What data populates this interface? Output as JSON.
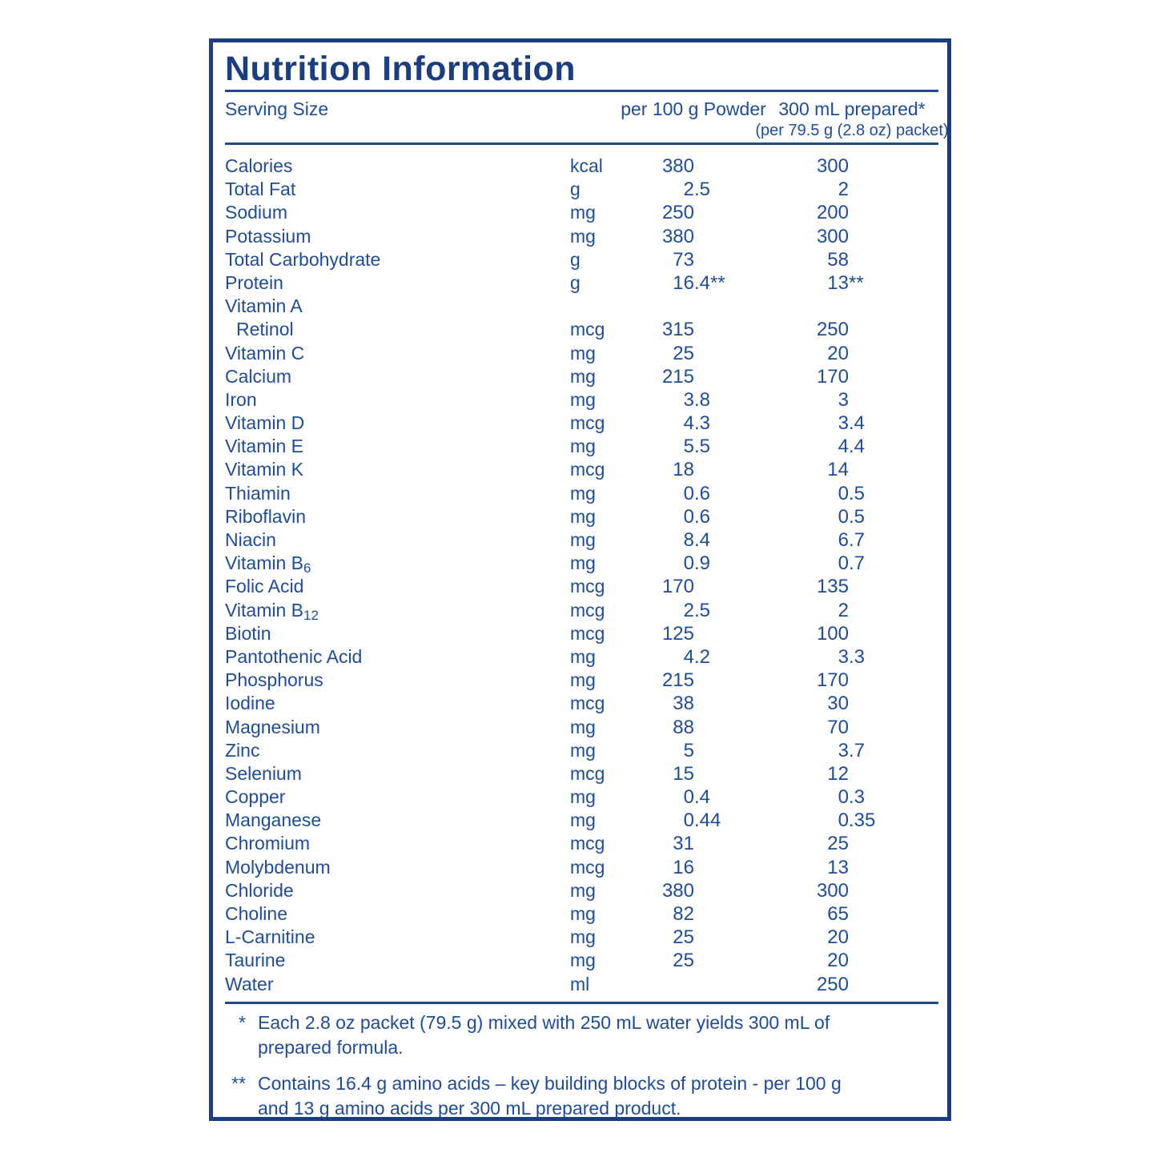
{
  "page": {
    "title": "Nutrition Information",
    "colors": {
      "navy": "#1c3e7d",
      "text": "#1f4c92",
      "rule": "#24498a"
    }
  },
  "header": {
    "serving_size_label": "Serving Size",
    "col_powder": "per 100 g Powder",
    "col_prepared_line1": "300 mL prepared*",
    "col_prepared_line2": "(per 79.5 g (2.8 oz) packet)"
  },
  "rows": [
    {
      "label": "Calories",
      "unit": "kcal",
      "per100": "380",
      "prepared": "300"
    },
    {
      "label": "Total Fat",
      "unit": "g",
      "per100": "2.5",
      "prepared": "2"
    },
    {
      "label": "Sodium",
      "unit": "mg",
      "per100": "250",
      "prepared": "200"
    },
    {
      "label": "Potassium",
      "unit": "mg",
      "per100": "380",
      "prepared": "300"
    },
    {
      "label": "Total Carbohydrate",
      "unit": "g",
      "per100": "73",
      "prepared": "58"
    },
    {
      "label": "Protein",
      "unit": "g",
      "per100": "16.4**",
      "prepared": "13**"
    },
    {
      "label": "Vitamin A",
      "unit": "",
      "per100": "",
      "prepared": ""
    },
    {
      "label": "Retinol",
      "indent": true,
      "unit": "mcg",
      "per100": "315",
      "prepared": "250"
    },
    {
      "label": "Vitamin C",
      "unit": "mg",
      "per100": "25",
      "prepared": "20"
    },
    {
      "label": "Calcium",
      "unit": "mg",
      "per100": "215",
      "prepared": "170"
    },
    {
      "label": "Iron",
      "unit": "mg",
      "per100": "3.8",
      "prepared": "3"
    },
    {
      "label": "Vitamin D",
      "unit": "mcg",
      "per100": "4.3",
      "prepared": "3.4"
    },
    {
      "label": "Vitamin E",
      "unit": "mg",
      "per100": "5.5",
      "prepared": "4.4"
    },
    {
      "label": "Vitamin K",
      "unit": "mcg",
      "per100": "18",
      "prepared": "14"
    },
    {
      "label": "Thiamin",
      "unit": "mg",
      "per100": "0.6",
      "prepared": "0.5"
    },
    {
      "label": "Riboflavin",
      "unit": "mg",
      "per100": "0.6",
      "prepared": "0.5"
    },
    {
      "label": "Niacin",
      "unit": "mg",
      "per100": "8.4",
      "prepared": "6.7"
    },
    {
      "label": "Vitamin B",
      "sub": "6",
      "unit": "mg",
      "per100": "0.9",
      "prepared": "0.7"
    },
    {
      "label": "Folic Acid",
      "unit": "mcg",
      "per100": "170",
      "prepared": "135"
    },
    {
      "label": "Vitamin B",
      "sub": "12",
      "unit": "mcg",
      "per100": "2.5",
      "prepared": "2"
    },
    {
      "label": "Biotin",
      "unit": "mcg",
      "per100": "125",
      "prepared": "100"
    },
    {
      "label": "Pantothenic Acid",
      "unit": "mg",
      "per100": "4.2",
      "prepared": "3.3"
    },
    {
      "label": "Phosphorus",
      "unit": "mg",
      "per100": "215",
      "prepared": "170"
    },
    {
      "label": "Iodine",
      "unit": "mcg",
      "per100": "38",
      "prepared": "30"
    },
    {
      "label": "Magnesium",
      "unit": "mg",
      "per100": "88",
      "prepared": "70"
    },
    {
      "label": "Zinc",
      "unit": "mg",
      "per100": "5",
      "prepared": "3.7"
    },
    {
      "label": "Selenium",
      "unit": "mcg",
      "per100": "15",
      "prepared": "12"
    },
    {
      "label": "Copper",
      "unit": "mg",
      "per100": "0.4",
      "prepared": "0.3"
    },
    {
      "label": "Manganese",
      "unit": "mg",
      "per100": "0.44",
      "prepared": "0.35"
    },
    {
      "label": "Chromium",
      "unit": "mcg",
      "per100": "31",
      "prepared": "25"
    },
    {
      "label": "Molybdenum",
      "unit": "mcg",
      "per100": "16",
      "prepared": "13"
    },
    {
      "label": "Chloride",
      "unit": "mg",
      "per100": "380",
      "prepared": "300"
    },
    {
      "label": "Choline",
      "unit": "mg",
      "per100": "82",
      "prepared": "65"
    },
    {
      "label": "L-Carnitine",
      "unit": "mg",
      "per100": "25",
      "prepared": "20"
    },
    {
      "label": "Taurine",
      "unit": "mg",
      "per100": "25",
      "prepared": "20"
    },
    {
      "label": "Water",
      "unit": "ml",
      "per100": "",
      "prepared": "250"
    }
  ],
  "footnotes": [
    {
      "marker": "*",
      "lines": [
        "Each 2.8 oz packet (79.5 g) mixed with 250 mL water yields 300 mL of",
        "prepared formula."
      ]
    },
    {
      "marker": "**",
      "lines": [
        "Contains 16.4 g amino acids – key building blocks of protein - per 100 g",
        "and 13 g amino acids per 300 mL prepared product."
      ]
    }
  ]
}
